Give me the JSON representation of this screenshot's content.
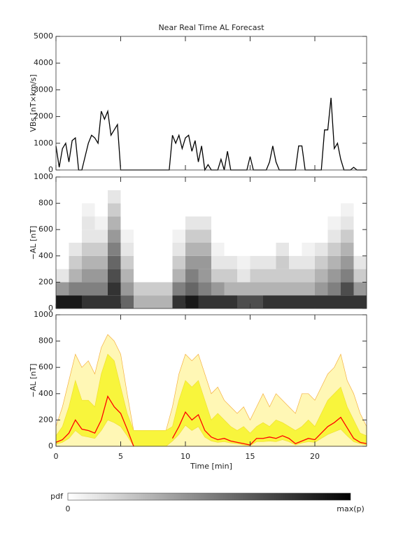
{
  "chart_data": [
    {
      "type": "line",
      "title": "Near Real Time AL Forecast",
      "ylabel": "VBs [nT×km/s]",
      "xlim": [
        0,
        24
      ],
      "xticks": [
        0,
        5,
        10,
        15,
        20
      ],
      "ylim": [
        0,
        5000
      ],
      "yticks": [
        0,
        1000,
        2000,
        3000,
        4000,
        5000
      ],
      "x": [
        0,
        0.25,
        0.5,
        0.75,
        1,
        1.25,
        1.5,
        1.75,
        2,
        2.25,
        2.5,
        2.75,
        3,
        3.25,
        3.5,
        3.75,
        4,
        4.25,
        4.5,
        4.75,
        5,
        5.25,
        5.5,
        5.75,
        6,
        6.25,
        6.5,
        6.75,
        7,
        7.25,
        7.5,
        7.75,
        8,
        8.25,
        8.5,
        8.75,
        9,
        9.25,
        9.5,
        9.75,
        10,
        10.25,
        10.5,
        10.75,
        11,
        11.25,
        11.5,
        11.75,
        12,
        12.25,
        12.5,
        12.75,
        13,
        13.25,
        13.5,
        13.75,
        14,
        14.25,
        14.5,
        14.75,
        15,
        15.25,
        15.5,
        15.75,
        16,
        16.25,
        16.5,
        16.75,
        17,
        17.25,
        17.5,
        17.75,
        18,
        18.25,
        18.5,
        18.75,
        19,
        19.25,
        19.5,
        19.75,
        20,
        20.25,
        20.5,
        20.75,
        21,
        21.25,
        21.5,
        21.75,
        22,
        22.25,
        22.5,
        22.75,
        23,
        23.25,
        23.5,
        23.75,
        24
      ],
      "series": [
        {
          "color": "#000000",
          "values": [
            900,
            100,
            800,
            1000,
            300,
            1100,
            1200,
            0,
            0,
            500,
            1000,
            1300,
            1200,
            1000,
            2200,
            1900,
            2200,
            1300,
            1500,
            1700,
            0,
            0,
            0,
            0,
            0,
            0,
            0,
            0,
            0,
            0,
            0,
            0,
            0,
            0,
            0,
            0,
            1300,
            1000,
            1300,
            800,
            1200,
            1300,
            700,
            1100,
            300,
            900,
            0,
            200,
            0,
            0,
            0,
            400,
            0,
            700,
            0,
            0,
            0,
            0,
            0,
            0,
            500,
            0,
            0,
            0,
            0,
            0,
            300,
            900,
            300,
            0,
            0,
            0,
            0,
            0,
            0,
            900,
            900,
            0,
            0,
            0,
            0,
            0,
            0,
            1500,
            1500,
            2700,
            800,
            1000,
            400,
            0,
            0,
            0,
            100,
            0,
            0,
            0,
            0
          ]
        }
      ]
    },
    {
      "type": "heatmap",
      "ylabel": "−AL [nT]",
      "xlim": [
        0,
        24
      ],
      "xticks": [
        0,
        5,
        10,
        15,
        20
      ],
      "ylim": [
        0,
        1000
      ],
      "yticks": [
        0,
        200,
        400,
        600,
        800,
        1000
      ],
      "xbins": [
        0,
        1,
        2,
        3,
        4,
        5,
        6,
        7,
        8,
        9,
        10,
        11,
        12,
        13,
        14,
        15,
        16,
        17,
        18,
        19,
        20,
        21,
        22,
        23,
        24
      ],
      "ybins": [
        0,
        100,
        200,
        300,
        400,
        500,
        600,
        700,
        800,
        900,
        1000
      ],
      "z": [
        [
          0.9,
          0.9,
          0.8,
          0.8,
          0.8,
          0.6,
          0.3,
          0.3,
          0.3,
          0.8,
          0.9,
          0.8,
          0.8,
          0.8,
          0.7,
          0.7,
          0.8,
          0.8,
          0.8,
          0.8,
          0.8,
          0.8,
          0.8,
          0.8
        ],
        [
          0.4,
          0.5,
          0.5,
          0.5,
          0.8,
          0.4,
          0.2,
          0.2,
          0.2,
          0.5,
          0.6,
          0.5,
          0.4,
          0.3,
          0.3,
          0.3,
          0.3,
          0.3,
          0.3,
          0.3,
          0.4,
          0.5,
          0.7,
          0.4
        ],
        [
          0.1,
          0.3,
          0.4,
          0.4,
          0.7,
          0.3,
          0,
          0,
          0,
          0.3,
          0.5,
          0.4,
          0.2,
          0.2,
          0.1,
          0.2,
          0.2,
          0.2,
          0.2,
          0.2,
          0.3,
          0.4,
          0.5,
          0.2
        ],
        [
          0,
          0.2,
          0.3,
          0.3,
          0.6,
          0.2,
          0,
          0,
          0,
          0.2,
          0.4,
          0.4,
          0.1,
          0.1,
          0.05,
          0.1,
          0.1,
          0.2,
          0.1,
          0.1,
          0.2,
          0.3,
          0.4,
          0.1
        ],
        [
          0,
          0.1,
          0.2,
          0.2,
          0.5,
          0.1,
          0,
          0,
          0,
          0.1,
          0.3,
          0.3,
          0.05,
          0,
          0,
          0,
          0,
          0.1,
          0,
          0.05,
          0.1,
          0.2,
          0.3,
          0
        ],
        [
          0,
          0,
          0.1,
          0.1,
          0.4,
          0.05,
          0,
          0,
          0,
          0.05,
          0.2,
          0.2,
          0,
          0,
          0,
          0,
          0,
          0,
          0,
          0,
          0,
          0.1,
          0.2,
          0
        ],
        [
          0,
          0,
          0.1,
          0.05,
          0.3,
          0,
          0,
          0,
          0,
          0,
          0.1,
          0.1,
          0,
          0,
          0,
          0,
          0,
          0,
          0,
          0,
          0,
          0.05,
          0.1,
          0
        ],
        [
          0,
          0,
          0.05,
          0,
          0.2,
          0,
          0,
          0,
          0,
          0,
          0,
          0,
          0,
          0,
          0,
          0,
          0,
          0,
          0,
          0,
          0,
          0,
          0.05,
          0
        ],
        [
          0,
          0,
          0,
          0,
          0.1,
          0,
          0,
          0,
          0,
          0,
          0,
          0,
          0,
          0,
          0,
          0,
          0,
          0,
          0,
          0,
          0,
          0,
          0,
          0
        ],
        [
          0,
          0,
          0,
          0,
          0,
          0,
          0,
          0,
          0,
          0,
          0,
          0,
          0,
          0,
          0,
          0,
          0,
          0,
          0,
          0,
          0,
          0,
          0,
          0
        ]
      ]
    },
    {
      "type": "band",
      "ylabel": "−AL [nT]",
      "xlabel": "Time [min]",
      "xlim": [
        0,
        24
      ],
      "xticks": [
        0,
        5,
        10,
        15,
        20
      ],
      "ylim": [
        0,
        1000
      ],
      "yticks": [
        0,
        200,
        400,
        600,
        800,
        1000
      ],
      "x": [
        0,
        0.5,
        1,
        1.5,
        2,
        2.5,
        3,
        3.5,
        4,
        4.5,
        5,
        5.5,
        6,
        6.5,
        7,
        7.5,
        8,
        8.5,
        9,
        9.5,
        10,
        10.5,
        11,
        11.5,
        12,
        12.5,
        13,
        13.5,
        14,
        14.5,
        15,
        15.5,
        16,
        16.5,
        17,
        17.5,
        18,
        18.5,
        19,
        19.5,
        20,
        20.5,
        21,
        21.5,
        22,
        22.5,
        23,
        23.5,
        24
      ],
      "bands": [
        {
          "color": "#fff7b5",
          "edge": "#f5b041",
          "lower": [
            0,
            0,
            0,
            0,
            0,
            0,
            0,
            0,
            0,
            0,
            0,
            0,
            0,
            0,
            0,
            0,
            0,
            0,
            0,
            0,
            0,
            0,
            0,
            0,
            0,
            0,
            0,
            0,
            0,
            0,
            0,
            0,
            0,
            0,
            0,
            0,
            0,
            0,
            0,
            0,
            0,
            0,
            0,
            0,
            0,
            0,
            0,
            0,
            0
          ],
          "upper": [
            150,
            300,
            500,
            700,
            600,
            650,
            550,
            750,
            850,
            800,
            700,
            400,
            120,
            120,
            120,
            120,
            120,
            120,
            300,
            550,
            700,
            650,
            700,
            550,
            400,
            450,
            350,
            300,
            250,
            300,
            200,
            300,
            400,
            300,
            400,
            350,
            300,
            250,
            400,
            400,
            350,
            450,
            550,
            600,
            700,
            500,
            400,
            250,
            150
          ]
        },
        {
          "color": "#f8f53c",
          "edge": "#f0e030",
          "lower": [
            15,
            30,
            60,
            120,
            80,
            70,
            60,
            120,
            200,
            180,
            150,
            80,
            0,
            0,
            0,
            0,
            0,
            0,
            40,
            90,
            160,
            120,
            150,
            70,
            40,
            30,
            35,
            25,
            20,
            10,
            5,
            35,
            35,
            40,
            35,
            50,
            35,
            10,
            25,
            35,
            30,
            60,
            90,
            110,
            130,
            80,
            35,
            20,
            10
          ],
          "upper": [
            80,
            150,
            300,
            500,
            350,
            350,
            300,
            550,
            700,
            650,
            450,
            250,
            120,
            120,
            120,
            120,
            120,
            120,
            150,
            350,
            500,
            450,
            500,
            350,
            200,
            250,
            200,
            150,
            120,
            150,
            100,
            150,
            180,
            150,
            200,
            180,
            150,
            120,
            150,
            200,
            150,
            250,
            350,
            400,
            450,
            300,
            200,
            100,
            80
          ]
        }
      ],
      "series": [
        {
          "color": "#ff0000",
          "values": [
            30,
            50,
            100,
            200,
            130,
            120,
            100,
            200,
            380,
            300,
            250,
            130,
            0,
            null,
            null,
            null,
            null,
            null,
            60,
            150,
            260,
            200,
            240,
            120,
            70,
            50,
            60,
            40,
            30,
            20,
            10,
            60,
            60,
            70,
            60,
            80,
            60,
            20,
            40,
            60,
            50,
            100,
            150,
            180,
            220,
            140,
            60,
            30,
            20
          ]
        }
      ]
    }
  ],
  "colorbar": {
    "label": "pdf",
    "min_label": "0",
    "max_label": "max(p)"
  }
}
